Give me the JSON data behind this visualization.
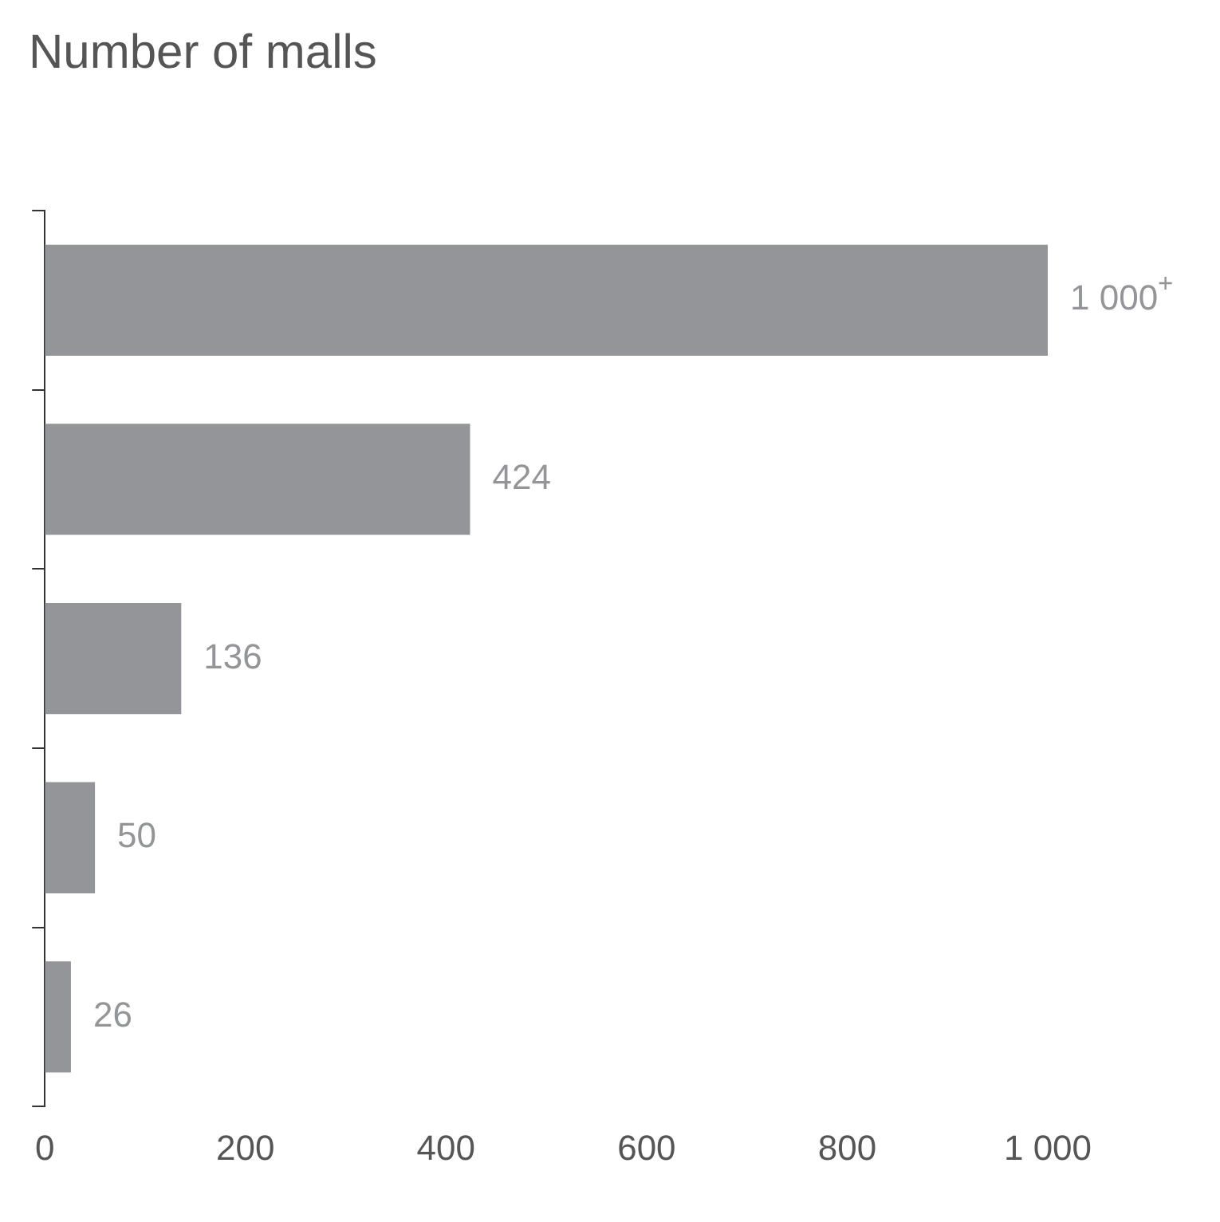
{
  "chart_data": {
    "type": "bar",
    "orientation": "horizontal",
    "title": "Number of malls",
    "categories": [
      null,
      null,
      null,
      null,
      null
    ],
    "values": [
      1000,
      424,
      136,
      50,
      26
    ],
    "value_labels": [
      "1 000$^{+}$",
      "424",
      "136",
      "50",
      "26"
    ],
    "color": "#939598",
    "xlim": [
      0,
      1000
    ],
    "xticks": [
      0,
      200,
      400,
      600,
      800,
      {
        "value": 1000,
        "label": "1 000"
      }
    ],
    "legend": false
  }
}
